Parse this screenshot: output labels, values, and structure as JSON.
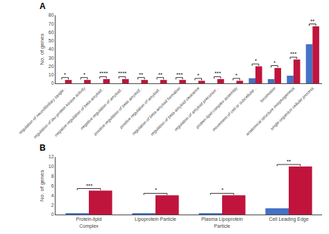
{
  "chart_data": [
    {
      "type": "bar",
      "title": "A",
      "categories": [
        "regulation of neurofibrillary tangle...",
        "regulation of tau-protein kinase activity",
        "negative regulation of beta-amyloid...",
        "negative regulation of amyloid...",
        "positive regulation of beta-amyloid...",
        "positive regulation of amyloid...",
        "regulation of beta-amyloid formation",
        "regulation of beta-amyloid clearance",
        "regulation of amyloid precursor...",
        "protein-lipid complex assembly",
        "movement of cell or subcellular...",
        "locomotion",
        "anatomical structure morphogenesis",
        "single-organism cellular process"
      ],
      "series": [
        {
          "color": "#4472C4",
          "values": [
            0,
            0,
            0,
            0,
            0,
            0,
            0,
            0,
            0,
            0,
            6,
            5,
            9,
            46
          ]
        },
        {
          "color": "#C0143C",
          "values": [
            4,
            4,
            5,
            5,
            4,
            4,
            4,
            3,
            5,
            3,
            20,
            18,
            28,
            67
          ]
        }
      ],
      "annotations": [
        "*",
        "*",
        "****",
        "****",
        "**",
        "**",
        "***",
        "*",
        "***",
        "*",
        "*",
        "*",
        "***",
        "**"
      ],
      "ylabel": "No. of genes",
      "ylim": [
        0,
        80
      ],
      "yticks": [
        0,
        10,
        20,
        30,
        40,
        50,
        60,
        70,
        80
      ],
      "grid": false
    },
    {
      "type": "bar",
      "title": "B",
      "categories": [
        "Protein-lipid Complex",
        "Lipoprotein Particle",
        "Plasma Lipoprotein Particle",
        "Cell Leading Edge"
      ],
      "series": [
        {
          "color": "#4472C4",
          "values": [
            0.15,
            0.15,
            0.15,
            1.3
          ]
        },
        {
          "color": "#C0143C",
          "values": [
            5,
            4,
            4,
            10
          ]
        }
      ],
      "annotations": [
        "***",
        "*",
        "*",
        "**"
      ],
      "ylabel": "No. of genes",
      "ylim": [
        0,
        12
      ],
      "yticks": [
        0,
        2,
        4,
        6,
        8,
        10,
        12
      ],
      "grid": false
    }
  ]
}
